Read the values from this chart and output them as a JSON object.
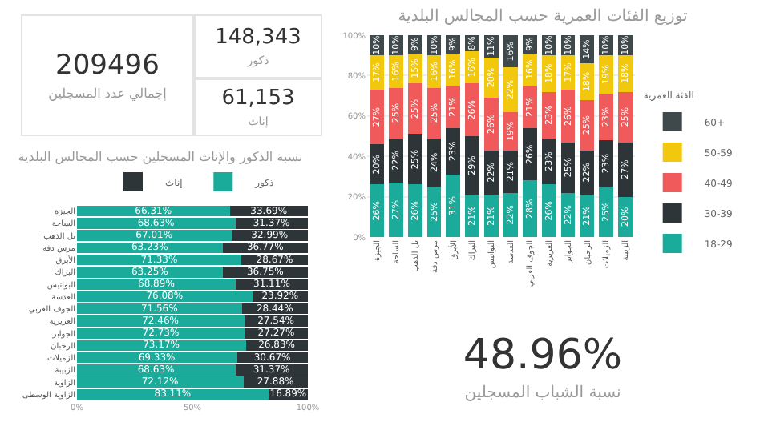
{
  "chart_data": [
    {
      "type": "other",
      "annotations": [
        "209496",
        "إجمالي عدد المسجلين",
        "148,343",
        "ذكور",
        "61,153",
        "إناث"
      ]
    },
    {
      "type": "bar",
      "title": "نسبة الذكور والإناث المسجلين حسب المجالس البلدية",
      "orientation": "horizontal",
      "stacked": true,
      "legend": "top",
      "grid": false,
      "categories": [
        "الجيزة",
        "الساحة",
        "تل الذهب",
        "مرس دفة",
        "الأبرق",
        "البراك",
        "البوانيس",
        "العدسة",
        "الجوف الغربي",
        "العزيزية",
        "الجوابر",
        "الرحبان",
        "الزميلات",
        "الزبيبة",
        "الزاوية",
        "الزاوية الوسطى"
      ],
      "xlim": [
        0,
        100
      ],
      "xticks": [
        {
          "value": 0,
          "label": "0%"
        },
        {
          "value": 50,
          "label": "50%"
        },
        {
          "value": 100,
          "label": "100%"
        }
      ],
      "series": [
        {
          "name": "ذكور",
          "color": "#1aab9b",
          "values": [
            66.31,
            68.63,
            67.01,
            63.23,
            71.33,
            63.25,
            68.89,
            76.08,
            71.56,
            72.46,
            72.73,
            73.17,
            69.33,
            68.63,
            72.12,
            83.11
          ],
          "value_labels": [
            "66.31%",
            "68.63%",
            "67.01%",
            "63.23%",
            "71.33%",
            "63.25%",
            "68.89%",
            "76.08%",
            "71.56%",
            "72.46%",
            "72.73%",
            "73.17%",
            "69.33%",
            "68.63%",
            "72.12%",
            "83.11%"
          ]
        },
        {
          "name": "إناث",
          "color": "#2e3538",
          "values": [
            33.69,
            31.37,
            32.99,
            36.77,
            28.67,
            36.75,
            31.11,
            23.92,
            28.44,
            27.54,
            27.27,
            26.83,
            30.67,
            31.37,
            27.88,
            16.89
          ],
          "value_labels": [
            "33.69%",
            "31.37%",
            "32.99%",
            "36.77%",
            "28.67%",
            "36.75%",
            "31.11%",
            "23.92%",
            "28.44%",
            "27.54%",
            "27.27%",
            "26.83%",
            "30.67%",
            "31.37%",
            "27.88%",
            "16.89%"
          ]
        }
      ]
    },
    {
      "type": "bar",
      "title": "توزيع الفئات العمرية حسب المجالس البلدية",
      "stacked": true,
      "legend": "right",
      "legend_title": "الفئة العمرية",
      "grid": "y",
      "categories": [
        "الجيزة",
        "الساحة",
        "تل الذهب",
        "مرس دفة",
        "الأبرق",
        "البراك",
        "البوانيس",
        "العدسة",
        "الجوف الغربي",
        "العزيزية",
        "الجوابر",
        "الرحبان",
        "الزميلات",
        "الزبيبة"
      ],
      "ylim": [
        0,
        100
      ],
      "yticks": [
        {
          "value": 0,
          "label": "0%"
        },
        {
          "value": 20,
          "label": "20%"
        },
        {
          "value": 40,
          "label": "40%"
        },
        {
          "value": 60,
          "label": "60%"
        },
        {
          "value": 80,
          "label": "80%"
        },
        {
          "value": 100,
          "label": "100%"
        }
      ],
      "series": [
        {
          "name": "18-29",
          "color": "#1aab9b",
          "values": [
            26,
            27,
            26,
            25,
            31,
            21,
            21,
            22,
            28,
            26,
            22,
            21,
            25,
            20
          ],
          "value_labels": [
            "26%",
            "27%",
            "26%",
            "25%",
            "31%",
            "21%",
            "21%",
            "22%",
            "28%",
            "26%",
            "22%",
            "21%",
            "25%",
            "20%"
          ]
        },
        {
          "name": "30-39",
          "color": "#2e3538",
          "values": [
            20,
            22,
            25,
            24,
            23,
            29,
            22,
            21,
            26,
            23,
            25,
            22,
            23,
            27
          ],
          "value_labels": [
            "20%",
            "22%",
            "25%",
            "24%",
            "23%",
            "29%",
            "22%",
            "21%",
            "26%",
            "23%",
            "25%",
            "22%",
            "23%",
            "27%"
          ]
        },
        {
          "name": "40-49",
          "color": "#f05a5a",
          "values": [
            27,
            25,
            25,
            25,
            21,
            26,
            26,
            19,
            21,
            23,
            26,
            25,
            23,
            25
          ],
          "value_labels": [
            "27%",
            "25%",
            "25%",
            "25%",
            "21%",
            "26%",
            "26%",
            "19%",
            "21%",
            "23%",
            "26%",
            "25%",
            "23%",
            "25%"
          ]
        },
        {
          "name": "50-59",
          "color": "#f2c80f",
          "values": [
            17,
            16,
            15,
            16,
            16,
            16,
            20,
            22,
            16,
            18,
            17,
            18,
            19,
            18
          ],
          "value_labels": [
            "17%",
            "16%",
            "15%",
            "16%",
            "16%",
            "16%",
            "20%",
            "22%",
            "16%",
            "18%",
            "17%",
            "18%",
            "19%",
            "18%"
          ]
        },
        {
          "name": "60+",
          "color": "#3f484b",
          "values": [
            10,
            10,
            9,
            10,
            9,
            8,
            11,
            16,
            9,
            10,
            10,
            14,
            10,
            10
          ],
          "value_labels": [
            "10%",
            "10%",
            "9%",
            "10%",
            "9%",
            "8%",
            "11%",
            "16%",
            "9%",
            "10%",
            "10%",
            "14%",
            "10%",
            "10%"
          ]
        }
      ]
    },
    {
      "type": "other",
      "annotations": [
        "48.96%",
        "نسبة الشباب المسجلين"
      ]
    }
  ]
}
